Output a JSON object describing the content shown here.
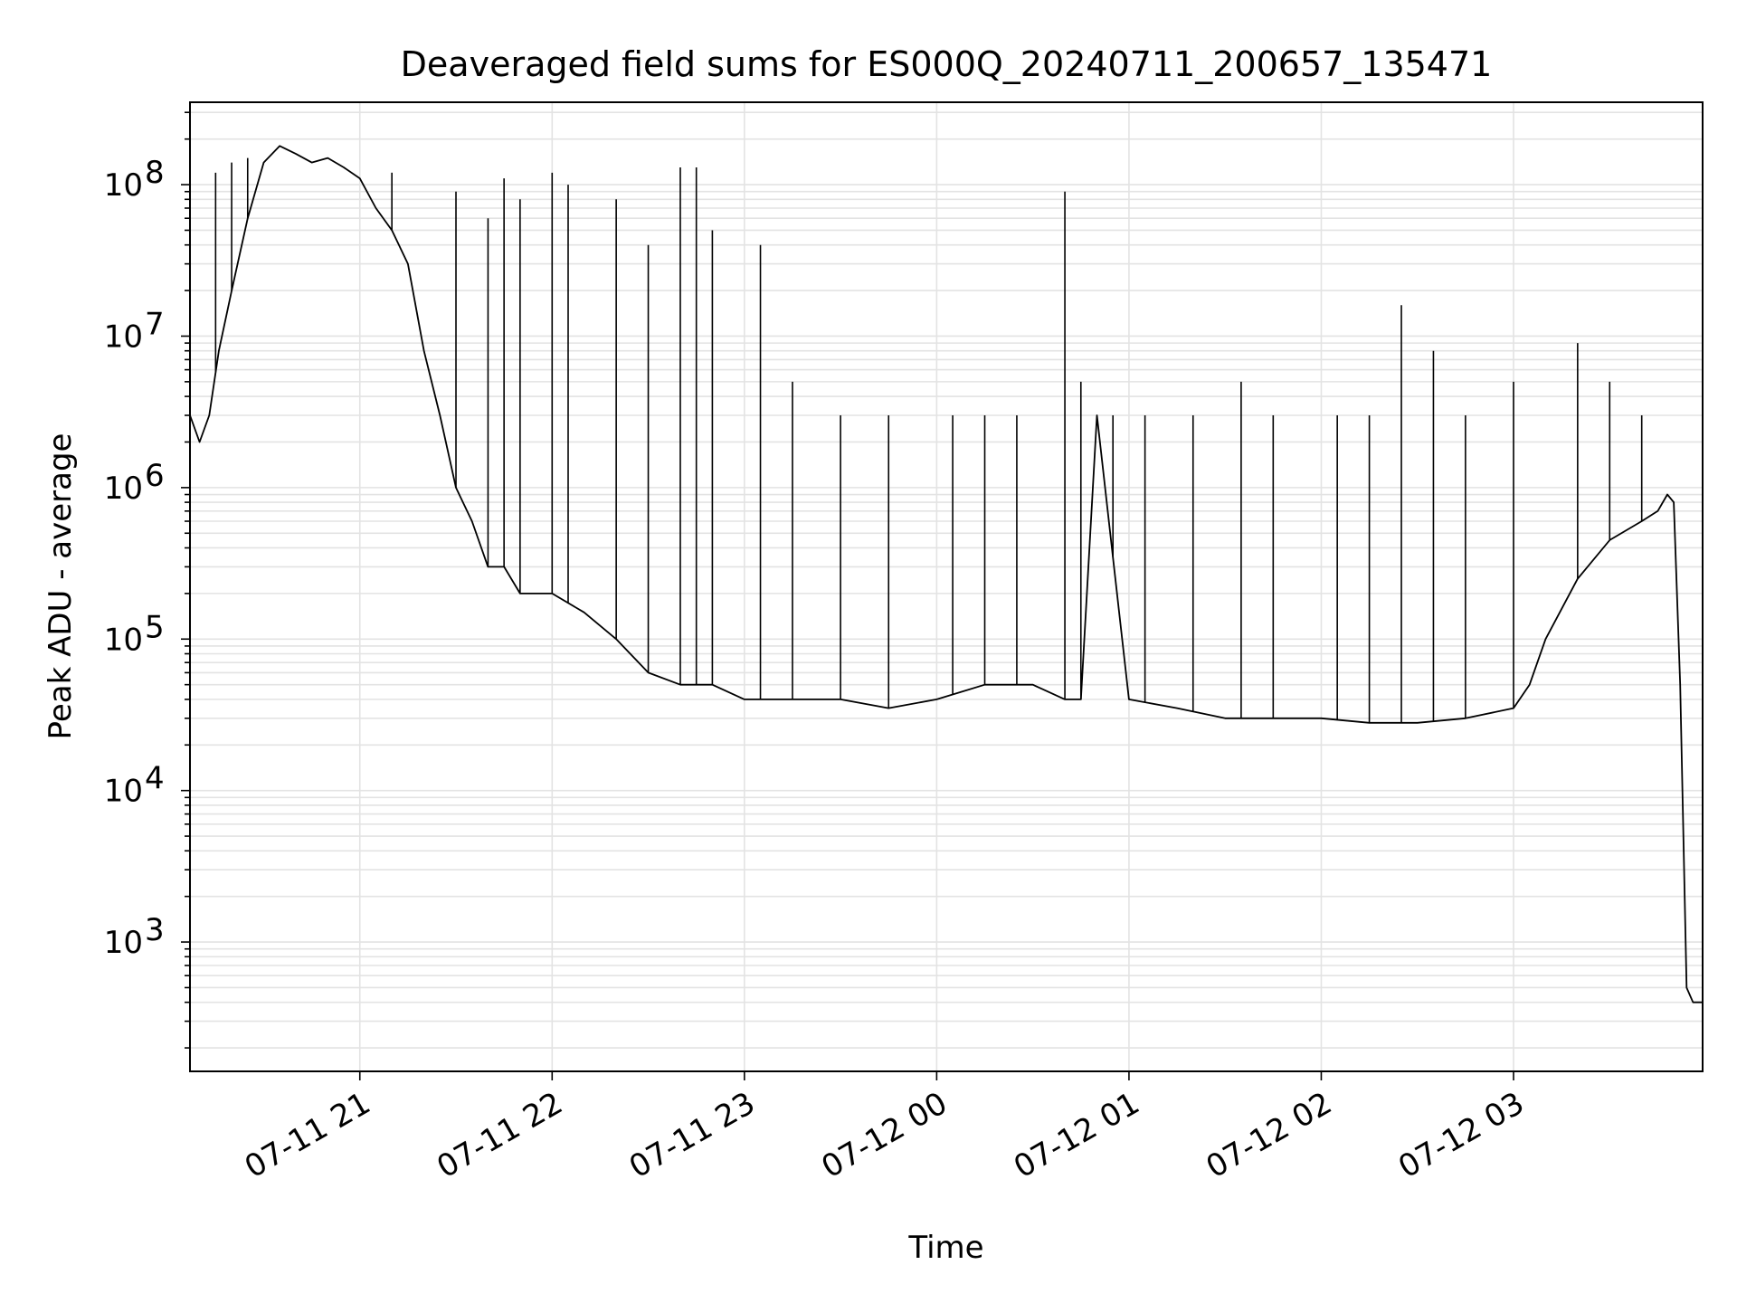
{
  "chart_data": {
    "type": "line",
    "title": "Deaveraged field sums for ES000Q_20240711_200657_135471",
    "xlabel": "Time",
    "ylabel": "Peak ADU - average",
    "yscale": "log",
    "ylim": [
      140,
      350000000
    ],
    "xlim": [
      "2024-07-11 20:07",
      "2024-07-12 03:59"
    ],
    "x_ticks": [
      {
        "value": "2024-07-11 21:00",
        "label": "07-11 21"
      },
      {
        "value": "2024-07-11 22:00",
        "label": "07-11 22"
      },
      {
        "value": "2024-07-11 23:00",
        "label": "07-11 23"
      },
      {
        "value": "2024-07-12 00:00",
        "label": "07-12 00"
      },
      {
        "value": "2024-07-12 01:00",
        "label": "07-12 01"
      },
      {
        "value": "2024-07-12 02:00",
        "label": "07-12 02"
      },
      {
        "value": "2024-07-12 03:00",
        "label": "07-12 03"
      }
    ],
    "y_ticks": [
      {
        "value": 1000,
        "base": "10",
        "exp": "3"
      },
      {
        "value": 10000,
        "base": "10",
        "exp": "4"
      },
      {
        "value": 100000,
        "base": "10",
        "exp": "5"
      },
      {
        "value": 1000000,
        "base": "10",
        "exp": "6"
      },
      {
        "value": 10000000,
        "base": "10",
        "exp": "7"
      },
      {
        "value": 100000000,
        "base": "10",
        "exp": "8"
      }
    ],
    "grid": true,
    "line_color": "#000000",
    "series": [
      {
        "x": [
          "2024-07-11 20:07",
          "2024-07-11 20:10",
          "2024-07-11 20:13",
          "2024-07-11 20:16",
          "2024-07-11 20:20",
          "2024-07-11 20:25",
          "2024-07-11 20:30",
          "2024-07-11 20:35",
          "2024-07-11 20:40",
          "2024-07-11 20:45",
          "2024-07-11 20:50",
          "2024-07-11 20:55",
          "2024-07-11 21:00",
          "2024-07-11 21:05",
          "2024-07-11 21:10",
          "2024-07-11 21:15",
          "2024-07-11 21:20",
          "2024-07-11 21:25",
          "2024-07-11 21:30",
          "2024-07-11 21:35",
          "2024-07-11 21:40",
          "2024-07-11 21:45",
          "2024-07-11 21:50",
          "2024-07-11 21:55",
          "2024-07-11 22:00",
          "2024-07-11 22:10",
          "2024-07-11 22:20",
          "2024-07-11 22:30",
          "2024-07-11 22:40",
          "2024-07-11 22:50",
          "2024-07-11 23:00",
          "2024-07-11 23:15",
          "2024-07-11 23:30",
          "2024-07-11 23:45",
          "2024-07-12 00:00",
          "2024-07-12 00:15",
          "2024-07-12 00:30",
          "2024-07-12 00:40",
          "2024-07-12 00:45",
          "2024-07-12 00:50",
          "2024-07-12 01:00",
          "2024-07-12 01:15",
          "2024-07-12 01:30",
          "2024-07-12 01:45",
          "2024-07-12 02:00",
          "2024-07-12 02:15",
          "2024-07-12 02:30",
          "2024-07-12 02:45",
          "2024-07-12 03:00",
          "2024-07-12 03:05",
          "2024-07-12 03:10",
          "2024-07-12 03:20",
          "2024-07-12 03:30",
          "2024-07-12 03:40",
          "2024-07-12 03:45",
          "2024-07-12 03:48",
          "2024-07-12 03:50",
          "2024-07-12 03:52",
          "2024-07-12 03:54",
          "2024-07-12 03:56",
          "2024-07-12 03:59"
        ],
        "values": [
          3000000,
          2000000,
          3000000,
          8000000,
          20000000,
          60000000,
          140000000,
          180000000,
          160000000,
          140000000,
          150000000,
          130000000,
          110000000,
          70000000,
          50000000,
          30000000,
          8000000,
          3000000,
          1000000,
          600000,
          300000,
          300000,
          200000,
          200000,
          200000,
          150000,
          100000,
          60000,
          50000,
          50000,
          40000,
          40000,
          40000,
          35000,
          40000,
          50000,
          50000,
          40000,
          40000,
          3000000,
          40000,
          35000,
          30000,
          30000,
          30000,
          28000,
          28000,
          30000,
          35000,
          50000,
          100000,
          250000,
          450000,
          600000,
          700000,
          900000,
          800000,
          50000,
          500,
          400,
          400
        ]
      }
    ],
    "spikes": [
      [
        "2024-07-11 20:15",
        120000000
      ],
      [
        "2024-07-11 20:20",
        140000000
      ],
      [
        "2024-07-11 20:25",
        150000000
      ],
      [
        "2024-07-11 21:10",
        120000000
      ],
      [
        "2024-07-11 21:30",
        90000000
      ],
      [
        "2024-07-11 21:40",
        60000000
      ],
      [
        "2024-07-11 21:45",
        110000000
      ],
      [
        "2024-07-11 21:50",
        80000000
      ],
      [
        "2024-07-11 22:00",
        120000000
      ],
      [
        "2024-07-11 22:05",
        100000000
      ],
      [
        "2024-07-11 22:20",
        80000000
      ],
      [
        "2024-07-11 22:30",
        40000000
      ],
      [
        "2024-07-11 22:40",
        130000000
      ],
      [
        "2024-07-11 22:45",
        130000000
      ],
      [
        "2024-07-11 22:50",
        50000000
      ],
      [
        "2024-07-11 23:05",
        40000000
      ],
      [
        "2024-07-11 23:15",
        5000000
      ],
      [
        "2024-07-11 23:30",
        3000000
      ],
      [
        "2024-07-11 23:45",
        3000000
      ],
      [
        "2024-07-12 00:05",
        3000000
      ],
      [
        "2024-07-12 00:15",
        3000000
      ],
      [
        "2024-07-12 00:25",
        3000000
      ],
      [
        "2024-07-12 00:40",
        90000000
      ],
      [
        "2024-07-12 00:45",
        5000000
      ],
      [
        "2024-07-12 00:55",
        3000000
      ],
      [
        "2024-07-12 01:05",
        3000000
      ],
      [
        "2024-07-12 01:20",
        3000000
      ],
      [
        "2024-07-12 01:35",
        5000000
      ],
      [
        "2024-07-12 01:45",
        3000000
      ],
      [
        "2024-07-12 02:05",
        3000000
      ],
      [
        "2024-07-12 02:15",
        3000000
      ],
      [
        "2024-07-12 02:25",
        16000000
      ],
      [
        "2024-07-12 02:35",
        8000000
      ],
      [
        "2024-07-12 02:45",
        3000000
      ],
      [
        "2024-07-12 03:00",
        5000000
      ],
      [
        "2024-07-12 03:20",
        9000000
      ],
      [
        "2024-07-12 03:30",
        5000000
      ],
      [
        "2024-07-12 03:40",
        3000000
      ]
    ]
  }
}
